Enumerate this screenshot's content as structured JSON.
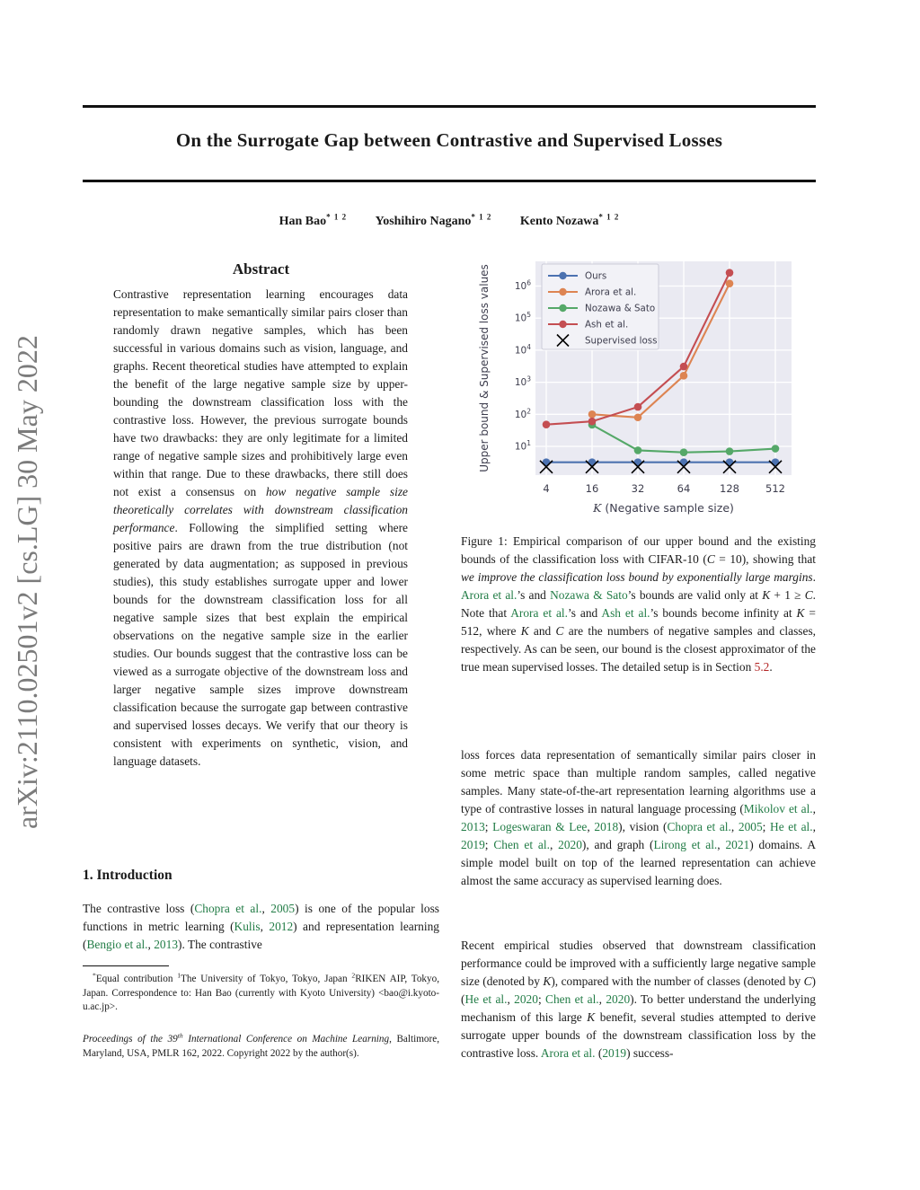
{
  "sidebar": {
    "arxiv_label": "arXiv:2110.02501v2  [cs.LG]  30 May 2022"
  },
  "header": {
    "title": "On the Surrogate Gap between Contrastive and Supervised Losses",
    "authors": [
      {
        "name": "Han Bao",
        "superscript": "* 1 2"
      },
      {
        "name": "Yoshihiro Nagano",
        "superscript": "* 1 2"
      },
      {
        "name": "Kento Nozawa",
        "superscript": "* 1 2"
      }
    ]
  },
  "abstract": {
    "heading": "Abstract",
    "segments": [
      {
        "t": "Contrastive representation learning encourages data representation to make semantically similar pairs closer than randomly drawn negative samples, which has been successful in various domains such as vision, language, and graphs. Recent theoretical studies have attempted to explain the benefit of the large negative sample size by upper-bounding the downstream classification loss with the contrastive loss. However, the previous surrogate bounds have two drawbacks: they are only legitimate for a limited range of negative sample sizes and prohibitively large even within that range. Due to these drawbacks, there still does not exist a consensus on "
      },
      {
        "t": "how negative sample size theoretically correlates with downstream classification performance",
        "s": "i"
      },
      {
        "t": ". Following the simplified setting where positive pairs are drawn from the true distribution (not generated by data augmentation; as supposed in previous studies), this study establishes surrogate upper and lower bounds for the downstream classification loss for all negative sample sizes that best explain the empirical observations on the negative sample size in the earlier studies. Our bounds suggest that the contrastive loss can be viewed as a surrogate objective of the downstream loss and larger negative sample sizes improve downstream classification because the surrogate gap between contrastive and supervised losses decays. We verify that our theory is consistent with experiments on synthetic, vision, and language datasets."
      }
    ]
  },
  "introduction": {
    "heading": "1. Introduction",
    "segments": [
      {
        "t": "The contrastive loss ("
      },
      {
        "t": "Chopra et al.",
        "s": "cite"
      },
      {
        "t": ", "
      },
      {
        "t": "2005",
        "s": "cite"
      },
      {
        "t": ") is one of the popular loss functions in metric learning ("
      },
      {
        "t": "Kulis",
        "s": "cite"
      },
      {
        "t": ", "
      },
      {
        "t": "2012",
        "s": "cite"
      },
      {
        "t": ") and representation learning ("
      },
      {
        "t": "Bengio et al.",
        "s": "cite"
      },
      {
        "t": ", "
      },
      {
        "t": "2013",
        "s": "cite"
      },
      {
        "t": "). The contrastive"
      }
    ]
  },
  "footnotes": {
    "equal_contribution": {
      "segments": [
        {
          "t": "*",
          "s": "sup"
        },
        {
          "t": "Equal contribution  "
        },
        {
          "t": "1",
          "s": "sup"
        },
        {
          "t": "The University of Tokyo, Tokyo, Japan "
        },
        {
          "t": "2",
          "s": "sup"
        },
        {
          "t": "RIKEN AIP, Tokyo, Japan. Correspondence to: Han Bao (currently with Kyoto University) <bao@i.kyoto-u.ac.jp>."
        }
      ]
    },
    "proceedings": {
      "segments": [
        {
          "t": "Proceedings of the 39",
          "s": "i"
        },
        {
          "t": "th",
          "s": "isup"
        },
        {
          "t": " International Conference on Machine Learning",
          "s": "i"
        },
        {
          "t": ", Baltimore, Maryland, USA, PMLR 162, 2022. Copyright 2022 by the author(s)."
        }
      ]
    }
  },
  "figure": {
    "caption_segments": [
      {
        "t": "Figure 1: Empirical comparison of our upper bound and the existing bounds of the classification loss with CIFAR-10 ("
      },
      {
        "t": "C",
        "s": "i"
      },
      {
        "t": " = 10), showing that "
      },
      {
        "t": "we improve the classification loss bound by exponentially large margins",
        "s": "i"
      },
      {
        "t": ". "
      },
      {
        "t": "Arora et al.",
        "s": "cite"
      },
      {
        "t": "’s and "
      },
      {
        "t": "Nozawa & Sato",
        "s": "cite"
      },
      {
        "t": "’s bounds are valid only at "
      },
      {
        "t": "K",
        "s": "i"
      },
      {
        "t": " + 1 ≥ "
      },
      {
        "t": "C",
        "s": "i"
      },
      {
        "t": ". Note that "
      },
      {
        "t": "Arora et al.",
        "s": "cite"
      },
      {
        "t": "’s and "
      },
      {
        "t": "Ash et al.",
        "s": "cite"
      },
      {
        "t": "’s bounds become infinity at "
      },
      {
        "t": "K",
        "s": "i"
      },
      {
        "t": " = 512, where "
      },
      {
        "t": "K",
        "s": "i"
      },
      {
        "t": " and "
      },
      {
        "t": "C",
        "s": "i"
      },
      {
        "t": " are the numbers of negative samples and classes, respectively. As can be seen, our bound is the closest approximator of the true mean supervised losses. The detailed setup is in Section "
      },
      {
        "t": "5.2",
        "s": "ref"
      },
      {
        "t": "."
      }
    ]
  },
  "body": {
    "paragraph1": {
      "segments": [
        {
          "t": "loss forces data representation of semantically similar pairs closer in some metric space than multiple random samples, called negative samples.  Many state-of-the-art representation learning algorithms use a type of contrastive losses in natural language processing ("
        },
        {
          "t": "Mikolov et al.",
          "s": "cite"
        },
        {
          "t": ", "
        },
        {
          "t": "2013",
          "s": "cite"
        },
        {
          "t": "; "
        },
        {
          "t": "Logeswaran & Lee",
          "s": "cite"
        },
        {
          "t": ", "
        },
        {
          "t": "2018",
          "s": "cite"
        },
        {
          "t": "), vision ("
        },
        {
          "t": "Chopra et al.",
          "s": "cite"
        },
        {
          "t": ", "
        },
        {
          "t": "2005",
          "s": "cite"
        },
        {
          "t": "; "
        },
        {
          "t": "He et al.",
          "s": "cite"
        },
        {
          "t": ", "
        },
        {
          "t": "2019",
          "s": "cite"
        },
        {
          "t": "; "
        },
        {
          "t": "Chen et al.",
          "s": "cite"
        },
        {
          "t": ", "
        },
        {
          "t": "2020",
          "s": "cite"
        },
        {
          "t": "), and graph ("
        },
        {
          "t": "Lirong et al.",
          "s": "cite"
        },
        {
          "t": ", "
        },
        {
          "t": "2021",
          "s": "cite"
        },
        {
          "t": ") domains. A simple model built on top of the learned representation can achieve almost the same accuracy as supervised learning does."
        }
      ]
    },
    "paragraph2": {
      "segments": [
        {
          "t": "Recent empirical studies observed that downstream classification performance could be improved with a sufficiently large negative sample size (denoted by "
        },
        {
          "t": "K",
          "s": "i"
        },
        {
          "t": "), compared with the number of classes (denoted by "
        },
        {
          "t": "C",
          "s": "i"
        },
        {
          "t": ") ("
        },
        {
          "t": "He et al.",
          "s": "cite"
        },
        {
          "t": ", "
        },
        {
          "t": "2020",
          "s": "cite"
        },
        {
          "t": "; "
        },
        {
          "t": "Chen et al.",
          "s": "cite"
        },
        {
          "t": ", "
        },
        {
          "t": "2020",
          "s": "cite"
        },
        {
          "t": ").  To better understand the underlying mechanism of this large "
        },
        {
          "t": "K",
          "s": "i"
        },
        {
          "t": " benefit, several studies attempted to derive surrogate upper bounds of the downstream classification loss by the contrastive loss. "
        },
        {
          "t": "Arora et al.",
          "s": "cite"
        },
        {
          "t": " ("
        },
        {
          "t": "2019",
          "s": "cite"
        },
        {
          "t": ") success-"
        }
      ]
    }
  },
  "chart_data": {
    "type": "line",
    "title": "",
    "xlabel_segments": [
      {
        "t": "K",
        "s": "i"
      },
      {
        "t": " (Negative sample size)"
      }
    ],
    "ylabel": "Upper bound & Supervised loss values",
    "x_categories": [
      "4",
      "16",
      "32",
      "64",
      "128",
      "512"
    ],
    "y_scale": "log",
    "y_tick_exponents": [
      1,
      2,
      3,
      4,
      5,
      6
    ],
    "ylim": [
      1.2,
      4500000
    ],
    "grid": true,
    "plot_bg": "#EAEAF2",
    "grid_color": "#ffffff",
    "legend_position": "upper left",
    "series": [
      {
        "name": "Ours",
        "color": "#4C72B0",
        "marker": "circle",
        "values": [
          3.2,
          3.2,
          3.2,
          3.2,
          3.2,
          3.2
        ]
      },
      {
        "name": "Arora et al.",
        "color": "#DD8452",
        "marker": "circle",
        "values": [
          null,
          100,
          80,
          1600,
          1200000,
          null
        ]
      },
      {
        "name": "Nozawa & Sato",
        "color": "#55A868",
        "marker": "circle",
        "values": [
          null,
          47,
          7.5,
          6.5,
          7,
          8.5
        ]
      },
      {
        "name": "Ash et al.",
        "color": "#C44E52",
        "marker": "circle",
        "values": [
          48,
          60,
          170,
          3100,
          2600000,
          null
        ]
      },
      {
        "name": "Supervised loss",
        "color": "#000000",
        "marker": "x",
        "line": false,
        "values": [
          2.3,
          2.3,
          2.3,
          2.3,
          2.3,
          2.3
        ]
      }
    ]
  }
}
